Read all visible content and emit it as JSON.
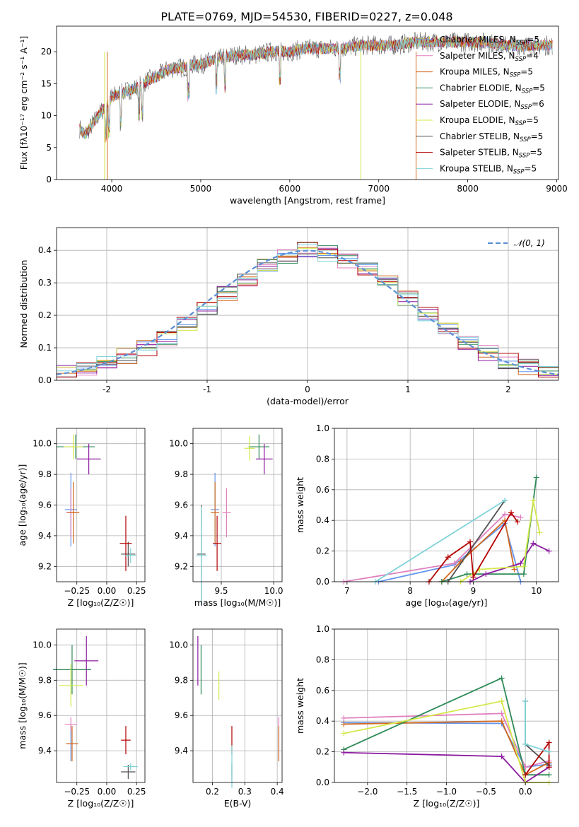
{
  "title": "PLATE=0769, MJD=54530, FIBERID=0227, z=0.048",
  "colors": [
    "#6495ed",
    "#e07fbf",
    "#d2691e",
    "#2e8b57",
    "#8b1a9f",
    "#d4e84a",
    "#505050",
    "#b40000",
    "#7fd3d8"
  ],
  "series_names": [
    "Chabrier MILES",
    "Salpeter MILES",
    "Kroupa MILES",
    "Chabrier ELODIE",
    "Salpeter ELODIE",
    "Kroupa ELODIE",
    "Chabrier STELIB",
    "Salpeter STELIB",
    "Kroupa STELIB"
  ],
  "chart_data": [
    {
      "type": "line",
      "panel": "spectrum",
      "title": "PLATE=0769, MJD=54530, FIBERID=0227, z=0.048",
      "xlabel": "wavelength [Angstrom, rest frame]",
      "ylabel": "Flux [fλ10⁻¹⁷ erg cm⁻² s⁻¹ A⁻¹]",
      "xlim": [
        3380,
        9020
      ],
      "ylim": [
        0,
        24
      ],
      "xticks": [
        4000,
        5000,
        6000,
        7000,
        8000,
        9000
      ],
      "yticks": [
        0,
        5,
        10,
        15,
        20
      ],
      "legend_loc": "right",
      "legend": [
        {
          "name": "Chabrier MILES",
          "nssp": "5"
        },
        {
          "name": "Salpeter MILES",
          "nssp": "4"
        },
        {
          "name": "Kroupa MILES",
          "nssp": "5"
        },
        {
          "name": "Chabrier ELODIE",
          "nssp": "5"
        },
        {
          "name": "Salpeter ELODIE",
          "nssp": "6"
        },
        {
          "name": "Kroupa ELODIE",
          "nssp": "5"
        },
        {
          "name": "Chabrier STELIB",
          "nssp": "5"
        },
        {
          "name": "Salpeter STELIB",
          "nssp": "5"
        },
        {
          "name": "Kroupa STELIB",
          "nssp": "5"
        }
      ],
      "data_x": [
        3640,
        3700,
        3800,
        3900,
        3950,
        4000,
        4100,
        4200,
        4300,
        4400,
        4500,
        4600,
        4700,
        4800,
        4900,
        5000,
        5200,
        5400,
        5600,
        5800,
        6000,
        6200,
        6400,
        6600,
        6800,
        7000,
        7200,
        7400,
        7600,
        7800,
        8000,
        8200,
        8400,
        8600,
        8800,
        8950
      ],
      "data_y": [
        8,
        7,
        9,
        11,
        11.5,
        13,
        13.5,
        14,
        14.5,
        15.5,
        16,
        17,
        17.5,
        17.5,
        18,
        18,
        19,
        19.5,
        19.5,
        20,
        20,
        20.5,
        20.5,
        20.5,
        21,
        21,
        21,
        21.5,
        21.5,
        21.5,
        21.5,
        21.5,
        21,
        21,
        21,
        21
      ]
    },
    {
      "type": "line",
      "panel": "residual histogram",
      "xlabel": "(data-model)/error",
      "ylabel": "Normed distribution",
      "xlim": [
        -2.5,
        2.5
      ],
      "ylim": [
        0,
        0.47
      ],
      "xticks": [
        -2,
        -1,
        0,
        1,
        2
      ],
      "yticks": [
        0.0,
        0.1,
        0.2,
        0.3,
        0.4
      ],
      "legend": "𝒩(0, 1)",
      "legend_loc": "upper right",
      "bin_edges": [
        -2.5,
        -2.3,
        -2.1,
        -1.9,
        -1.7,
        -1.5,
        -1.3,
        -1.1,
        -0.9,
        -0.7,
        -0.5,
        -0.3,
        -0.1,
        0.1,
        0.3,
        0.5,
        0.7,
        0.9,
        1.1,
        1.3,
        1.5,
        1.7,
        1.9,
        2.1,
        2.3,
        2.5
      ],
      "hist_mean": [
        0.025,
        0.04,
        0.055,
        0.075,
        0.1,
        0.13,
        0.17,
        0.22,
        0.27,
        0.31,
        0.35,
        0.38,
        0.4,
        0.39,
        0.37,
        0.34,
        0.3,
        0.25,
        0.2,
        0.16,
        0.12,
        0.085,
        0.06,
        0.04,
        0.025
      ]
    },
    {
      "type": "scatter",
      "panel": "age vs Z",
      "xlabel": "Z [log₁₀(Z/Z☉)]",
      "ylabel": "age  [log₁₀(age/yr)]",
      "xlim": [
        -0.42,
        0.32
      ],
      "ylim": [
        9.1,
        10.1
      ],
      "xticks": [
        -0.25,
        0.0,
        0.25
      ],
      "xticklabels": [
        "−0.25",
        "0.00",
        "0.25"
      ],
      "yticks": [
        9.2,
        9.4,
        9.6,
        9.8,
        10.0
      ],
      "points": [
        {
          "x": -0.3,
          "y": 9.57,
          "xerr": 0.05,
          "yerr": 0.24
        },
        {
          "x": -0.3,
          "y": 9.55,
          "xerr": 0.04,
          "yerr": 0.16
        },
        {
          "x": -0.28,
          "y": 9.55,
          "xerr": 0.05,
          "yerr": 0.2
        },
        {
          "x": -0.26,
          "y": 9.98,
          "xerr": 0.16,
          "yerr": 0.08
        },
        {
          "x": -0.15,
          "y": 9.9,
          "xerr": 0.1,
          "yerr": 0.1
        },
        {
          "x": -0.28,
          "y": 9.98,
          "xerr": 0.08,
          "yerr": 0.08
        },
        {
          "x": 0.18,
          "y": 9.28,
          "xerr": 0.06,
          "yerr": 0.08
        },
        {
          "x": 0.16,
          "y": 9.35,
          "xerr": 0.05,
          "yerr": 0.18
        },
        {
          "x": 0.2,
          "y": 9.27,
          "xerr": 0.05,
          "yerr": 0.05
        }
      ]
    },
    {
      "type": "scatter",
      "panel": "age vs mass",
      "xlabel": "mass [log₁₀(M/M☉)]",
      "xlim": [
        9.23,
        10.08
      ],
      "ylim": [
        9.1,
        10.1
      ],
      "xticks": [
        9.5,
        10.0
      ],
      "xticklabels": [
        "9.5",
        "10.0"
      ],
      "yticks": [
        9.2,
        9.4,
        9.6,
        9.8,
        10.0
      ],
      "points": [
        {
          "x": 9.44,
          "y": 9.57,
          "xerr": 0.04,
          "yerr": 0.24
        },
        {
          "x": 9.55,
          "y": 9.55,
          "xerr": 0.04,
          "yerr": 0.16
        },
        {
          "x": 9.44,
          "y": 9.55,
          "xerr": 0.04,
          "yerr": 0.2
        },
        {
          "x": 9.86,
          "y": 9.98,
          "xerr": 0.1,
          "yerr": 0.08
        },
        {
          "x": 9.91,
          "y": 9.9,
          "xerr": 0.08,
          "yerr": 0.1
        },
        {
          "x": 9.77,
          "y": 9.97,
          "xerr": 0.05,
          "yerr": 0.08
        },
        {
          "x": 9.31,
          "y": 9.28,
          "xerr": 0.04,
          "yerr": 0.32
        },
        {
          "x": 9.46,
          "y": 9.35,
          "xerr": 0.04,
          "yerr": 0.18
        },
        {
          "x": 9.31,
          "y": 9.27,
          "xerr": 0.05,
          "yerr": 0.32
        }
      ]
    },
    {
      "type": "line",
      "panel": "mass weight vs age",
      "xlabel": "age  [log₁₀(age/yr)]",
      "ylabel": "mass weight",
      "xlim": [
        6.8,
        10.35
      ],
      "ylim": [
        0,
        1.0
      ],
      "xticks": [
        7,
        8,
        9,
        10
      ],
      "yticks": [
        0.0,
        0.2,
        0.4,
        0.6,
        0.8,
        1.0
      ],
      "series": [
        {
          "x": [
            7.5,
            8.7,
            9.5,
            9.75
          ],
          "y": [
            0.0,
            0.11,
            0.38,
            0.0
          ]
        },
        {
          "x": [
            6.95,
            8.7,
            9.5,
            9.75
          ],
          "y": [
            0.0,
            0.12,
            0.44,
            0.42
          ]
        },
        {
          "x": [
            8.5,
            8.8,
            9.5,
            9.65
          ],
          "y": [
            0.0,
            0.13,
            0.4,
            0.08
          ]
        },
        {
          "x": [
            8.5,
            8.9,
            9.0,
            9.8,
            10.0
          ],
          "y": [
            0.0,
            0.05,
            0.05,
            0.05,
            0.68
          ]
        },
        {
          "x": [
            8.95,
            9.2,
            9.75,
            9.95,
            10.2
          ],
          "y": [
            0.0,
            0.05,
            0.12,
            0.25,
            0.2
          ]
        },
        {
          "x": [
            8.8,
            9.1,
            9.8,
            9.95,
            10.05
          ],
          "y": [
            0.0,
            0.08,
            0.1,
            0.53,
            0.32
          ]
        },
        {
          "x": [
            8.6,
            9.5
          ],
          "y": [
            0.0,
            0.53
          ]
        },
        {
          "x": [
            8.3,
            8.6,
            8.95,
            9.0,
            9.6,
            9.7
          ],
          "y": [
            0.0,
            0.16,
            0.26,
            0.03,
            0.45,
            0.39
          ]
        },
        {
          "x": [
            7.45,
            9.5
          ],
          "y": [
            0.0,
            0.53
          ]
        }
      ]
    },
    {
      "type": "scatter",
      "panel": "mass vs Z",
      "xlabel": "Z [log₁₀(Z/Z☉)]",
      "ylabel": "mass [log₁₀(M/M☉)]",
      "xlim": [
        -0.42,
        0.32
      ],
      "ylim": [
        9.22,
        10.09
      ],
      "xticks": [
        -0.25,
        0.0,
        0.25
      ],
      "xticklabels": [
        "−0.25",
        "0.00",
        "0.25"
      ],
      "yticks": [
        9.4,
        9.6,
        9.8,
        10.0
      ],
      "points": [
        {
          "x": -0.3,
          "y": 9.44,
          "xerr": 0.04,
          "yerr": 0.1
        },
        {
          "x": -0.3,
          "y": 9.55,
          "xerr": 0.05,
          "yerr": 0.04
        },
        {
          "x": -0.29,
          "y": 9.44,
          "xerr": 0.05,
          "yerr": 0.1
        },
        {
          "x": -0.29,
          "y": 9.86,
          "xerr": 0.16,
          "yerr": 0.14
        },
        {
          "x": -0.17,
          "y": 9.91,
          "xerr": 0.1,
          "yerr": 0.14
        },
        {
          "x": -0.3,
          "y": 9.77,
          "xerr": 0.1,
          "yerr": 0.12
        },
        {
          "x": 0.18,
          "y": 9.28,
          "xerr": 0.06,
          "yerr": 0.04
        },
        {
          "x": 0.16,
          "y": 9.46,
          "xerr": 0.04,
          "yerr": 0.08
        },
        {
          "x": 0.2,
          "y": 9.31,
          "xerr": 0.06,
          "yerr": 0.02
        }
      ]
    },
    {
      "type": "scatter",
      "panel": "mass vs E(B-V)",
      "xlabel": "E(B-V)",
      "xlim": [
        0.14,
        0.415
      ],
      "ylim": [
        9.22,
        10.09
      ],
      "xticks": [
        0.2,
        0.3,
        0.4
      ],
      "xticklabels": [
        "0.2",
        "0.3",
        "0.4"
      ],
      "yticks": [
        9.4,
        9.6,
        9.8,
        10.0
      ],
      "points": [
        {
          "x": 0.405,
          "y": 9.44,
          "xerr": 0,
          "yerr": 0.1
        },
        {
          "x": 0.405,
          "y": 9.55,
          "xerr": 0,
          "yerr": 0.04
        },
        {
          "x": 0.405,
          "y": 9.44,
          "xerr": 0,
          "yerr": 0.1
        },
        {
          "x": 0.165,
          "y": 9.86,
          "xerr": 0,
          "yerr": 0.14
        },
        {
          "x": 0.155,
          "y": 9.91,
          "xerr": 0,
          "yerr": 0.14
        },
        {
          "x": 0.22,
          "y": 9.77,
          "xerr": 0,
          "yerr": 0.08
        },
        {
          "x": 0.26,
          "y": 9.28,
          "xerr": 0,
          "yerr": 0.05
        },
        {
          "x": 0.26,
          "y": 9.46,
          "xerr": 0,
          "yerr": 0.08
        },
        {
          "x": 0.26,
          "y": 9.31,
          "xerr": 0,
          "yerr": 0.12
        }
      ]
    },
    {
      "type": "line",
      "panel": "mass weight vs Z",
      "xlabel": "Z [log₁₀(Z/Z☉)]",
      "ylabel": "mass weight",
      "xlim": [
        -2.42,
        0.42
      ],
      "ylim": [
        0,
        1.0
      ],
      "xticks": [
        -2.0,
        -1.5,
        -1.0,
        -0.5,
        0.0
      ],
      "xticklabels": [
        "−2.0",
        "−1.5",
        "−1.0",
        "−0.5",
        "0.0"
      ],
      "yticks": [
        0.0,
        0.2,
        0.4,
        0.6,
        0.8,
        1.0
      ],
      "series": [
        {
          "x": [
            -2.3,
            -0.3,
            0.0,
            0.3
          ],
          "y": [
            0.39,
            0.385,
            0.1,
            0.12
          ]
        },
        {
          "x": [
            -2.3,
            -0.3,
            0.0,
            0.3
          ],
          "y": [
            0.42,
            0.45,
            0.1,
            0.14
          ]
        },
        {
          "x": [
            -2.3,
            -0.3,
            0.0,
            0.3
          ],
          "y": [
            0.38,
            0.4,
            0.05,
            0.13
          ]
        },
        {
          "x": [
            -2.3,
            -0.3,
            0.0,
            0.3
          ],
          "y": [
            0.215,
            0.68,
            0.05,
            0.05
          ]
        },
        {
          "x": [
            -2.3,
            -0.3,
            0.0,
            0.3
          ],
          "y": [
            0.195,
            0.17,
            0.0,
            0.1
          ]
        },
        {
          "x": [
            -2.3,
            -0.3,
            0.0,
            0.3
          ],
          "y": [
            0.32,
            0.53,
            0.0,
            0.0
          ]
        },
        {
          "x": [
            0.0,
            0.0,
            0.3
          ],
          "y": [
            0.53,
            0.25,
            0.11
          ]
        },
        {
          "x": [
            0.0,
            0.3,
            0.3
          ],
          "y": [
            0.05,
            0.26,
            0.1
          ]
        },
        {
          "x": [
            0.0,
            0.0,
            0.3
          ],
          "y": [
            0.53,
            0.25,
            0.2
          ]
        }
      ]
    }
  ]
}
